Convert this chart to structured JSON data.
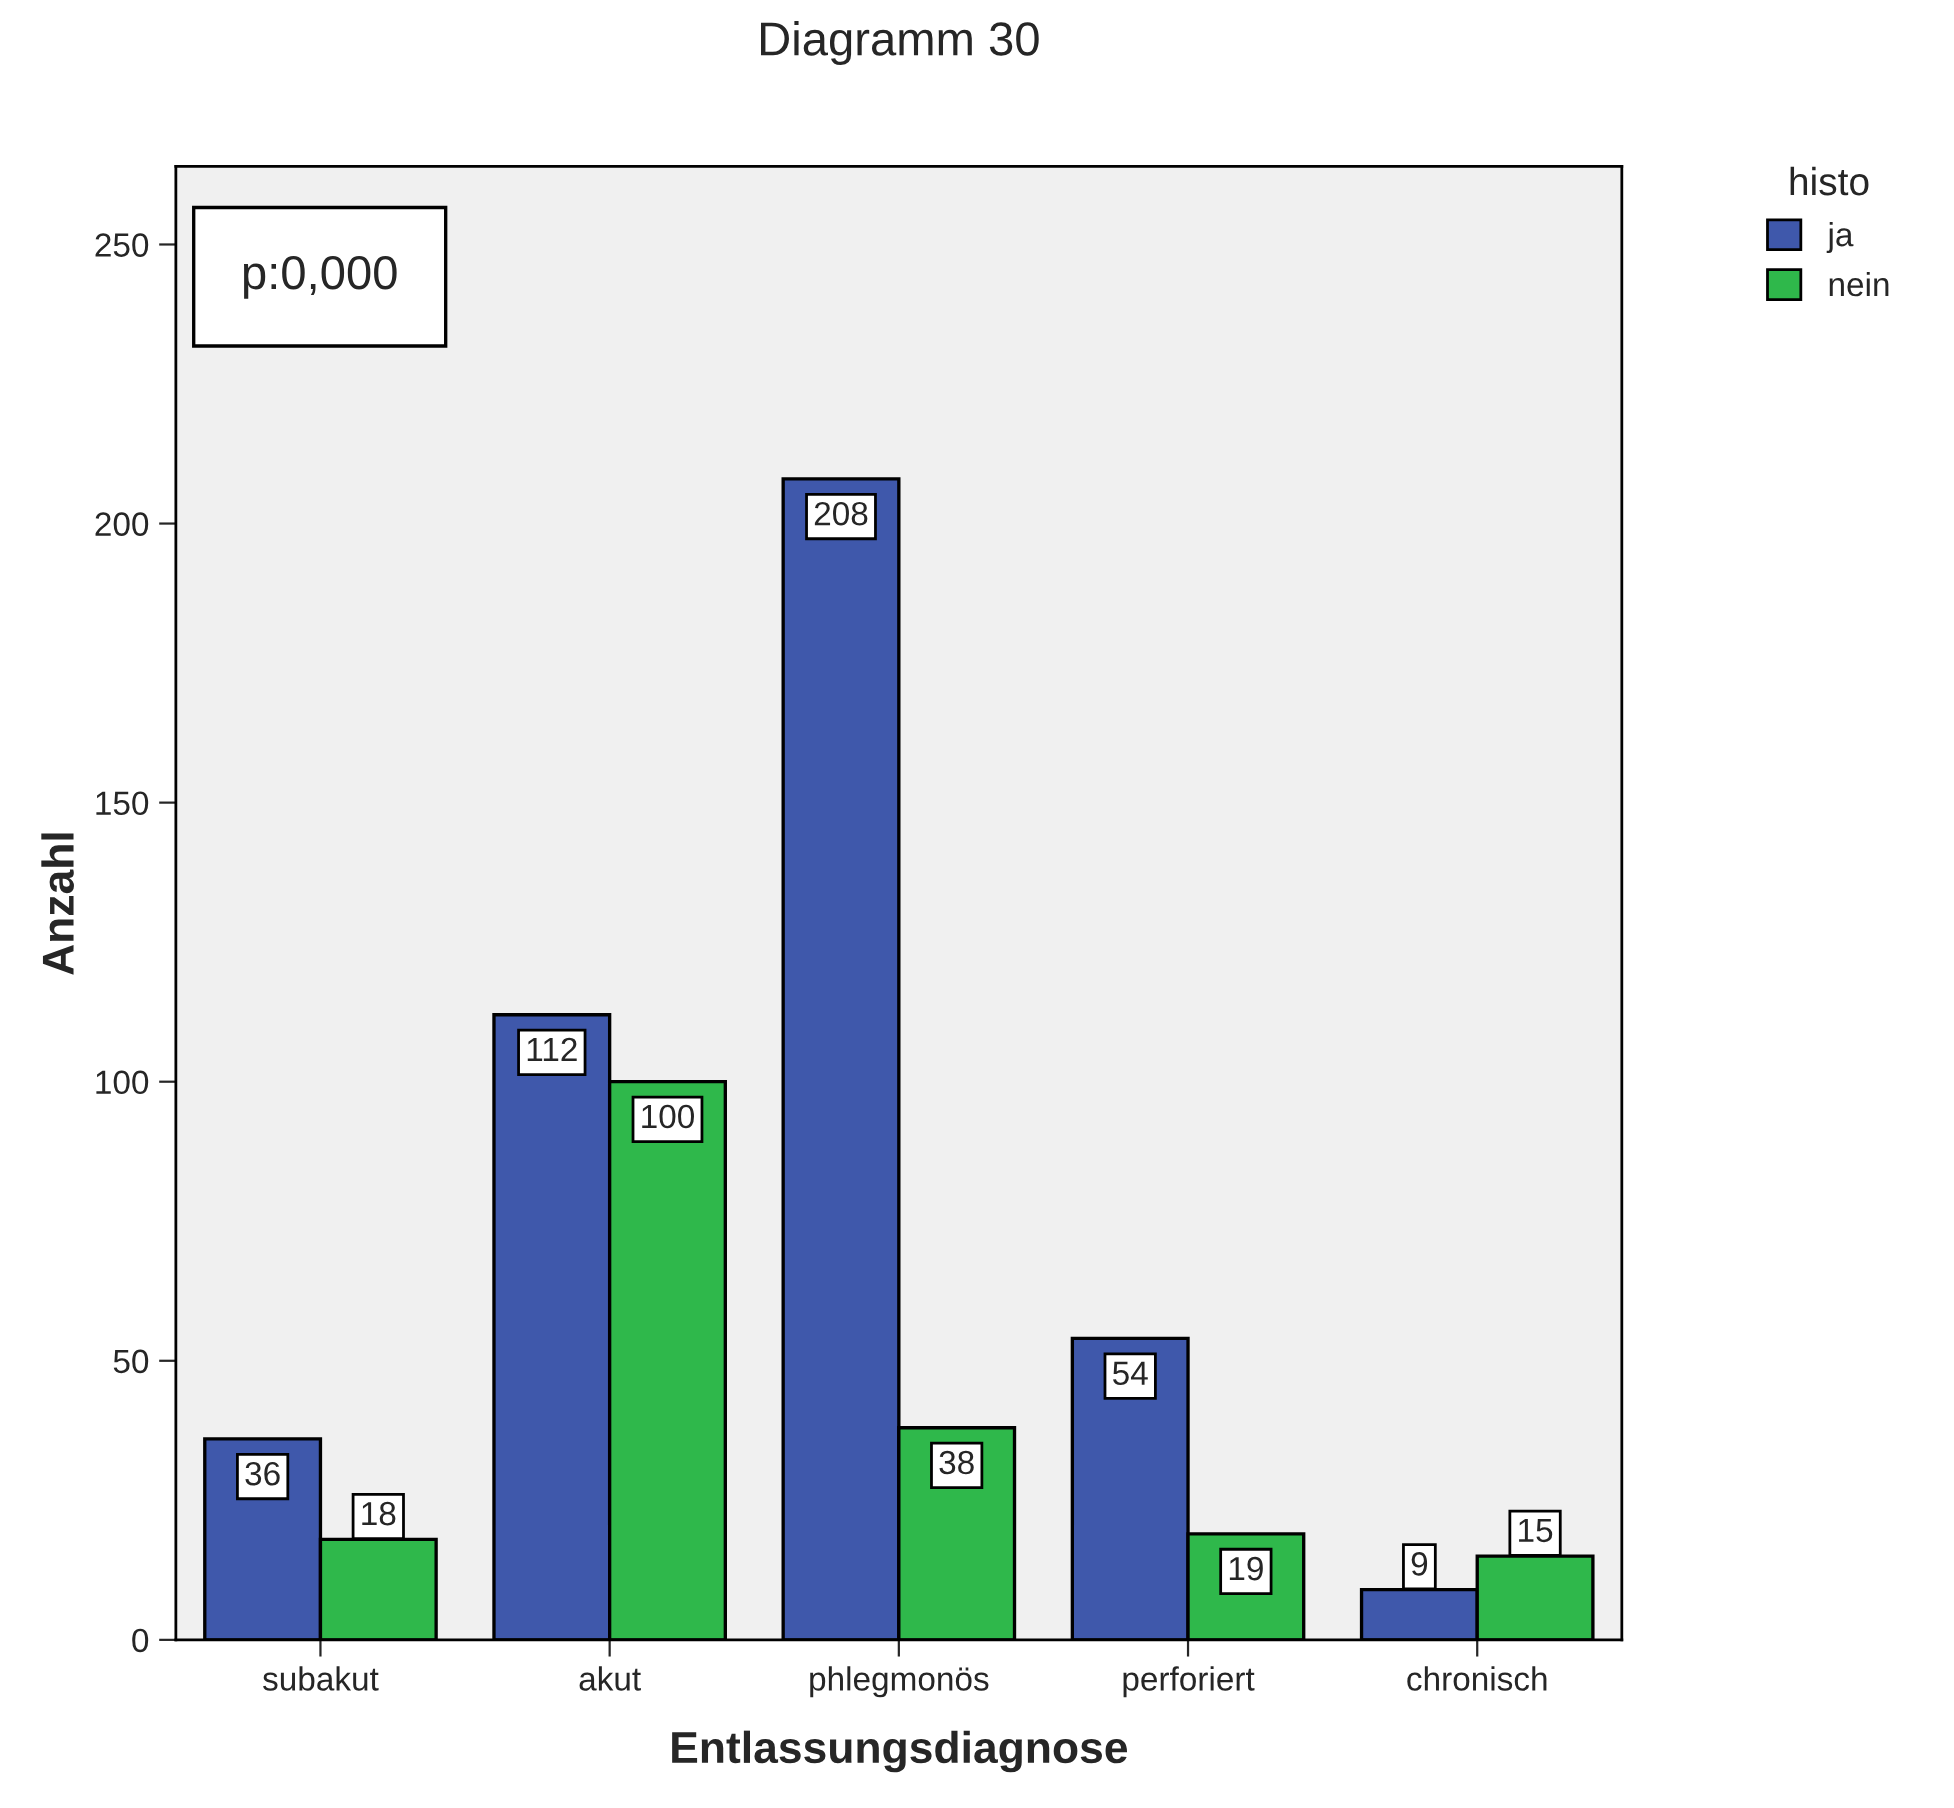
{
  "chart_data": {
    "type": "bar",
    "title": "Diagramm 30",
    "xlabel": "Entlassungsdiagnose",
    "ylabel": "Anzahl",
    "legend_title": "histo",
    "categories": [
      "subakut",
      "akut",
      "phlegmonös",
      "perforiert",
      "chronisch"
    ],
    "series": [
      {
        "name": "ja",
        "color": "#3f58ab",
        "values": [
          36,
          112,
          208,
          54,
          9
        ]
      },
      {
        "name": "nein",
        "color": "#2fb84b",
        "values": [
          18,
          100,
          38,
          19,
          15
        ]
      }
    ],
    "ylim": [
      0,
      264
    ],
    "yticks": [
      0,
      50,
      100,
      150,
      200,
      250
    ],
    "grid": false,
    "legend": "top right",
    "data_labels": true,
    "annotations": [
      "p:0,000"
    ]
  }
}
